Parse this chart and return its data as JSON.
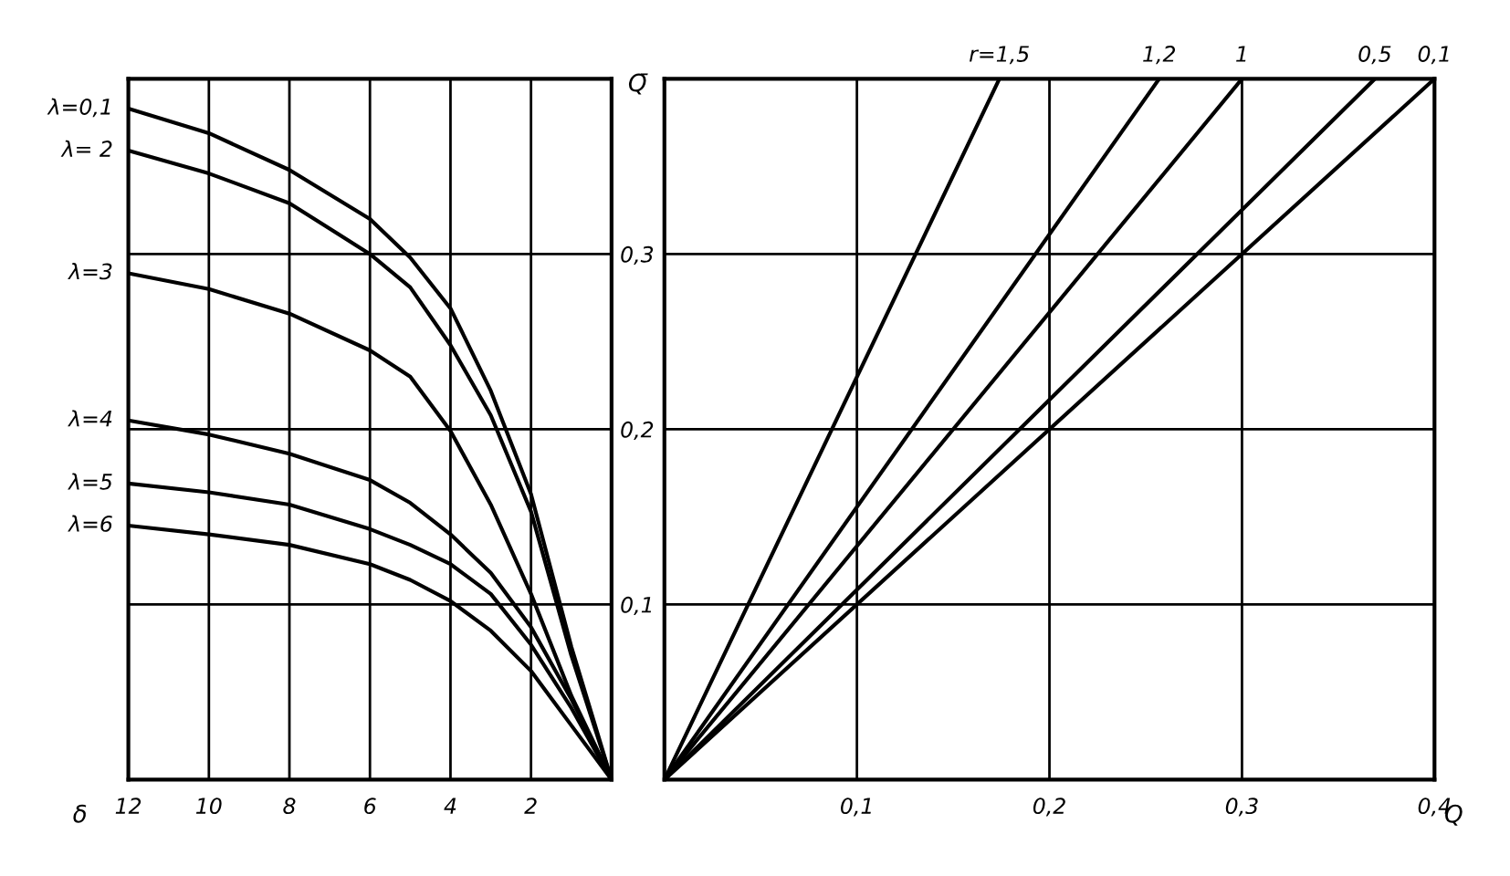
{
  "chart_data": [
    {
      "type": "line",
      "xlabel": "δ",
      "xlim": [
        12,
        0
      ],
      "xticks": [
        12,
        10,
        8,
        6,
        4,
        2
      ],
      "ylim": [
        0,
        0.4
      ],
      "yticks": [
        {
          "value": 0.1,
          "label": null
        },
        {
          "value": 0.2,
          "label": null
        },
        {
          "value": 0.3,
          "label": null
        }
      ],
      "tick_labels": "x",
      "grid": true,
      "x": [
        12,
        10,
        8,
        6,
        5,
        4,
        3,
        2,
        1,
        0
      ],
      "series": [
        {
          "name": "λ=0,1",
          "color": "#000000",
          "values": [
            0.383,
            0.369,
            0.348,
            0.32,
            0.298,
            0.269,
            0.222,
            0.163,
            0.076,
            0
          ]
        },
        {
          "name": "λ= 2",
          "color": "#000000",
          "values": [
            0.359,
            0.346,
            0.329,
            0.3,
            0.281,
            0.248,
            0.208,
            0.153,
            0.071,
            0
          ]
        },
        {
          "name": "λ=3",
          "color": "#000000",
          "values": [
            0.289,
            0.28,
            0.266,
            0.245,
            0.23,
            0.199,
            0.157,
            0.106,
            0.048,
            0
          ]
        },
        {
          "name": "λ=4",
          "color": "#000000",
          "values": [
            0.205,
            0.197,
            0.186,
            0.171,
            0.158,
            0.14,
            0.118,
            0.087,
            0.046,
            0
          ]
        },
        {
          "name": "λ=5",
          "color": "#000000",
          "values": [
            0.169,
            0.164,
            0.157,
            0.143,
            0.134,
            0.123,
            0.106,
            0.077,
            0.041,
            0
          ]
        },
        {
          "name": "λ=6",
          "color": "#000000",
          "values": [
            0.145,
            0.14,
            0.134,
            0.123,
            0.114,
            0.102,
            0.085,
            0.062,
            0.031,
            0
          ]
        }
      ]
    },
    {
      "type": "line",
      "xlabel": "Q",
      "ylabel": "Q̄",
      "xlim": [
        0,
        0.4
      ],
      "xticks": [
        {
          "value": 0.1,
          "label": "0,1"
        },
        {
          "value": 0.2,
          "label": "0,2"
        },
        {
          "value": 0.3,
          "label": "0,3"
        },
        {
          "value": 0.4,
          "label": "0,4"
        }
      ],
      "ylim": [
        0,
        0.4
      ],
      "yticks": [
        {
          "value": 0.1,
          "label": "0,1"
        },
        {
          "value": 0.2,
          "label": "0,2"
        },
        {
          "value": 0.3,
          "label": "0,3"
        }
      ],
      "grid": true,
      "series": [
        {
          "name": "r=1,5",
          "color": "#000000",
          "x": [
            0,
            0.174
          ],
          "values": [
            0,
            0.4
          ]
        },
        {
          "name": "1,2",
          "color": "#000000",
          "x": [
            0,
            0.257
          ],
          "values": [
            0,
            0.4
          ]
        },
        {
          "name": "1",
          "color": "#000000",
          "x": [
            0,
            0.3
          ],
          "values": [
            0,
            0.4
          ]
        },
        {
          "name": "0,5",
          "color": "#000000",
          "x": [
            0,
            0.369
          ],
          "values": [
            0,
            0.4
          ]
        },
        {
          "name": "0,1",
          "color": "#000000",
          "x": [
            0,
            0.4
          ],
          "values": [
            0,
            0.4
          ]
        }
      ]
    }
  ]
}
